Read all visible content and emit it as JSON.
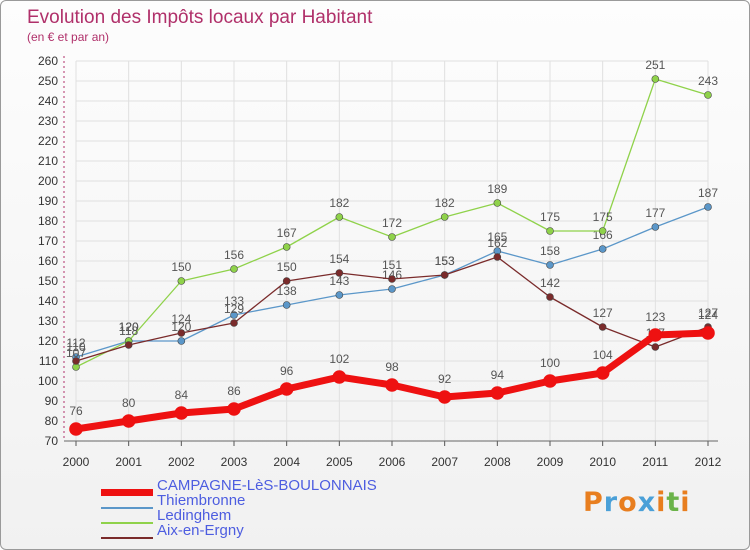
{
  "title": "Evolution des Impôts locaux par Habitant",
  "subtitle": "(en € et par an)",
  "brand": {
    "text": "Proxiti",
    "letter_colors": [
      "#e87e1f",
      "#4aa0d8",
      "#e87e1f",
      "#4aa0d8",
      "#e87e1f",
      "#6bb34a",
      "#e87e1f"
    ]
  },
  "chart_data": {
    "type": "line",
    "title": "Evolution des Impôts locaux par Habitant",
    "subtitle": "(en € et par an)",
    "x": [
      2000,
      2001,
      2002,
      2003,
      2004,
      2005,
      2006,
      2007,
      2008,
      2009,
      2010,
      2011,
      2012
    ],
    "xlabels": [
      "2000",
      "2001",
      "2002",
      "2003",
      "2004",
      "2005",
      "2006",
      "2007",
      "2008",
      "2009",
      "2010",
      "2011",
      "2012"
    ],
    "ylim": [
      70,
      260
    ],
    "yticks": [
      70,
      80,
      90,
      100,
      110,
      120,
      130,
      140,
      150,
      160,
      170,
      180,
      190,
      200,
      210,
      220,
      230,
      240,
      250,
      260
    ],
    "grid": true,
    "legend_position": "bottom-left",
    "series": [
      {
        "name": "Thiembronne",
        "color": "#5b97c9",
        "values": [
          112,
          120,
          120,
          133,
          138,
          143,
          146,
          153,
          165,
          158,
          166,
          177,
          187
        ]
      },
      {
        "name": "Ledinghem",
        "color": "#8fd24a",
        "values": [
          107,
          120,
          150,
          156,
          167,
          182,
          172,
          182,
          189,
          175,
          175,
          251,
          243
        ]
      },
      {
        "name": "Aix-en-Ergny",
        "color": "#7a2b2b",
        "values": [
          110,
          118,
          124,
          129,
          150,
          154,
          151,
          153,
          162,
          142,
          127,
          117,
          127
        ]
      },
      {
        "name": "CAMPAGNE-LèS-BOULONNAIS",
        "color": "#ee1111",
        "values": [
          76,
          80,
          84,
          86,
          96,
          102,
          98,
          92,
          94,
          100,
          104,
          123,
          124
        ]
      }
    ]
  }
}
